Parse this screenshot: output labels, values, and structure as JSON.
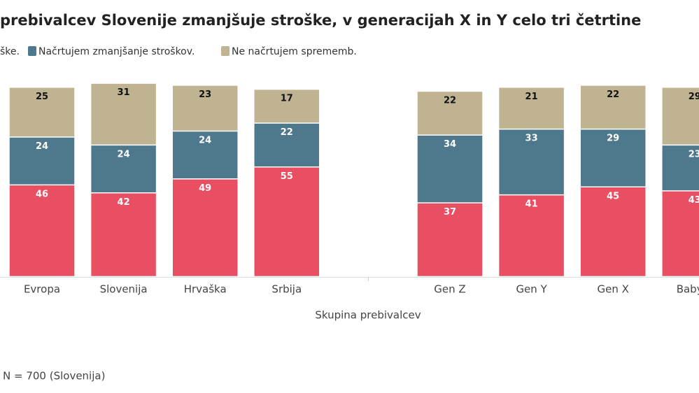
{
  "chart_data": {
    "type": "stacked-bar",
    "title": "prebivalcev Slovenije zmanjšuje stroške, v generacijah X in Y celo tri četrtine",
    "legend_first_text": "ške.",
    "x_label": "Skupina prebivalcev",
    "note": "N = 700 (Slovenija)",
    "categories": [
      "Evropa",
      "Slovenija",
      "Hrvaška",
      "Srbija",
      null,
      "Gen Z",
      "Gen Y",
      "Gen X",
      "Baby b"
    ],
    "series": [
      {
        "name": "ške.",
        "color": "#e84f62",
        "label_color": "#ffffff",
        "values": [
          46,
          42,
          49,
          55,
          null,
          37,
          41,
          45,
          43
        ]
      },
      {
        "name": "Načrtujem zmanjšanje stroškov.",
        "color": "#4e788c",
        "label_color": "#ffffff",
        "values": [
          24,
          24,
          24,
          22,
          null,
          34,
          33,
          29,
          23
        ]
      },
      {
        "name": "Ne načrtujem sprememb.",
        "color": "#bfb391",
        "label_color": "#111111",
        "values": [
          25,
          31,
          23,
          17,
          null,
          22,
          21,
          22,
          29
        ]
      }
    ],
    "ylim": [
      0,
      100
    ]
  }
}
